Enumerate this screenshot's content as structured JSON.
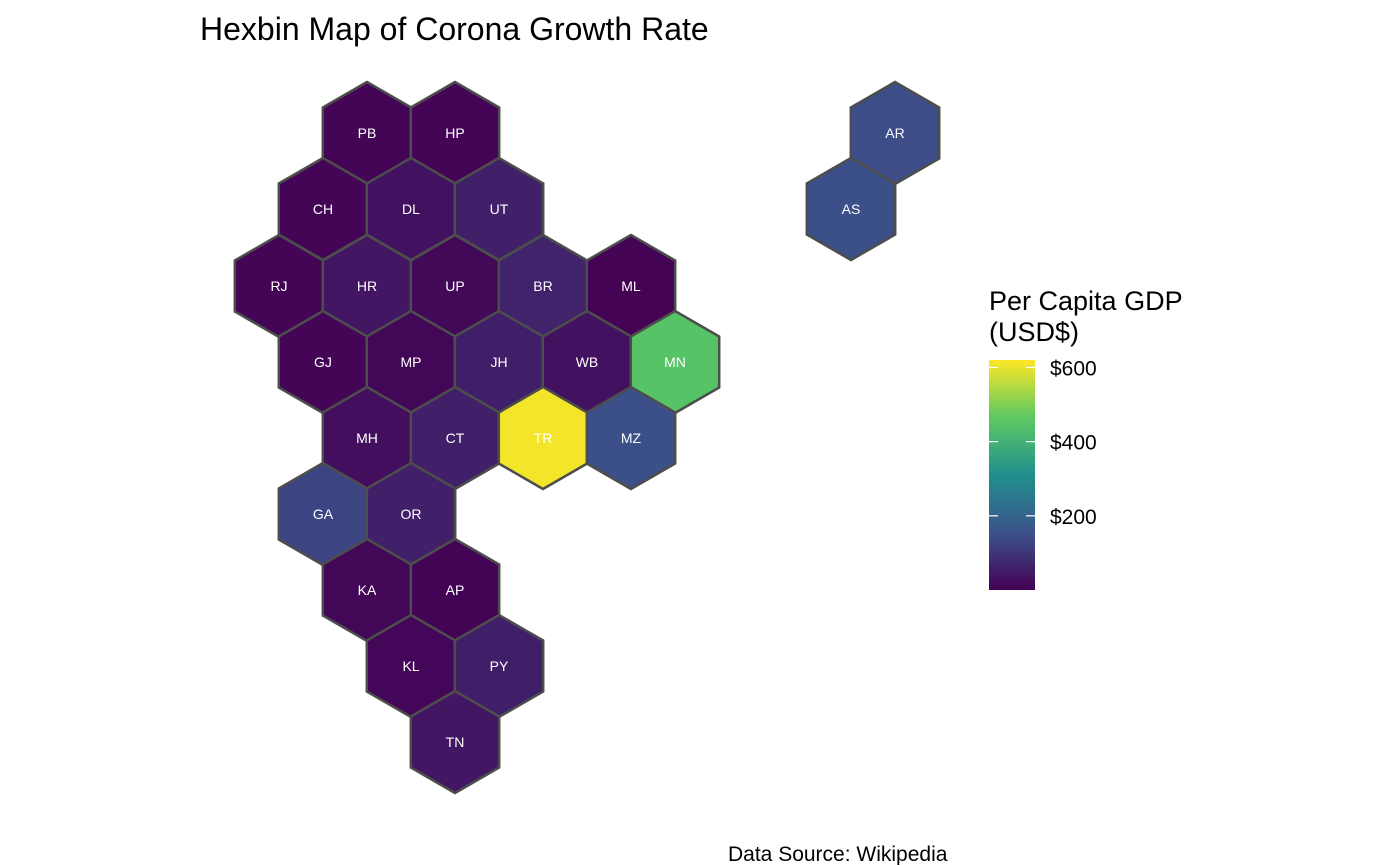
{
  "chart_data": {
    "type": "hexbin-map",
    "title": "Hexbin Map of Corona Growth Rate",
    "caption": "Data Source: Wikipedia",
    "legend": {
      "title_line1": "Per Capita GDP",
      "title_line2": "(USD$)",
      "placement": "right",
      "min": 0,
      "max": 620,
      "ticks": [
        {
          "value": 200,
          "label": "$200"
        },
        {
          "value": 400,
          "label": "$400"
        },
        {
          "value": 600,
          "label": "$600"
        }
      ]
    },
    "colors": {
      "scale": [
        "#440154",
        "#3b528b",
        "#21908c",
        "#5dc963",
        "#fde725"
      ],
      "hex_border": "#4d4d4d",
      "label_text": "#ffffff"
    },
    "regions": [
      {
        "code": "PB",
        "value": 8
      },
      {
        "code": "HP",
        "value": 8
      },
      {
        "code": "CH",
        "value": 8
      },
      {
        "code": "DL",
        "value": 30
      },
      {
        "code": "UT",
        "value": 60
      },
      {
        "code": "RJ",
        "value": 8
      },
      {
        "code": "HR",
        "value": 40
      },
      {
        "code": "UP",
        "value": 15
      },
      {
        "code": "BR",
        "value": 65
      },
      {
        "code": "ML",
        "value": 3
      },
      {
        "code": "GJ",
        "value": 8
      },
      {
        "code": "MP",
        "value": 12
      },
      {
        "code": "JH",
        "value": 55
      },
      {
        "code": "WB",
        "value": 30
      },
      {
        "code": "MN",
        "value": 450
      },
      {
        "code": "MH",
        "value": 25
      },
      {
        "code": "CT",
        "value": 60
      },
      {
        "code": "TR",
        "value": 610
      },
      {
        "code": "MZ",
        "value": 150
      },
      {
        "code": "GA",
        "value": 130
      },
      {
        "code": "OR",
        "value": 60
      },
      {
        "code": "KA",
        "value": 12
      },
      {
        "code": "AP",
        "value": 5
      },
      {
        "code": "KL",
        "value": 10
      },
      {
        "code": "PY",
        "value": 55
      },
      {
        "code": "TN",
        "value": 40
      },
      {
        "code": "AR",
        "value": 145
      },
      {
        "code": "AS",
        "value": 150
      }
    ]
  }
}
